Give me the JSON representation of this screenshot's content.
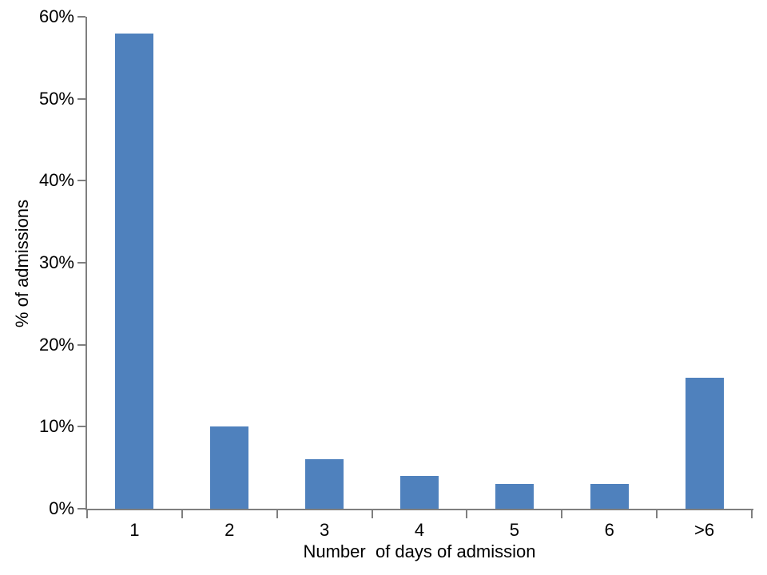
{
  "chart_data": {
    "type": "bar",
    "title": "",
    "categories": [
      "1",
      "2",
      "3",
      "4",
      "5",
      "6",
      ">6"
    ],
    "values": [
      58,
      10,
      6,
      4,
      3,
      3,
      16
    ],
    "xlabel": "Number  of days of admission",
    "ylabel": "% of admissions",
    "ylim": [
      0,
      60
    ],
    "ytick_step": 10,
    "ytick_labels": [
      "0%",
      "10%",
      "20%",
      "30%",
      "40%",
      "50%",
      "60%"
    ],
    "bar_color": "#4f81bd",
    "axis_color": "#7f7f7f",
    "text_color": "#000000",
    "background_color": "#ffffff",
    "grid": false,
    "legend": false
  }
}
